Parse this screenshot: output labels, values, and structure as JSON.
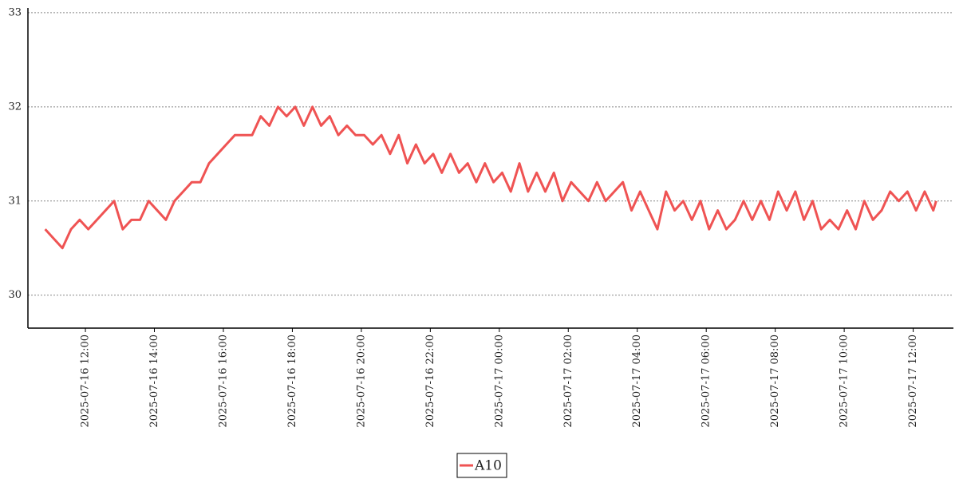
{
  "chart_data": {
    "type": "line",
    "x": [
      "2025-07-16 10:50",
      "2025-07-16 11:05",
      "2025-07-16 11:20",
      "2025-07-16 11:35",
      "2025-07-16 11:50",
      "2025-07-16 12:05",
      "2025-07-16 12:20",
      "2025-07-16 12:35",
      "2025-07-16 12:50",
      "2025-07-16 13:05",
      "2025-07-16 13:20",
      "2025-07-16 13:35",
      "2025-07-16 13:50",
      "2025-07-16 14:05",
      "2025-07-16 14:20",
      "2025-07-16 14:35",
      "2025-07-16 14:50",
      "2025-07-16 15:05",
      "2025-07-16 15:20",
      "2025-07-16 15:35",
      "2025-07-16 15:50",
      "2025-07-16 16:05",
      "2025-07-16 16:20",
      "2025-07-16 16:35",
      "2025-07-16 16:50",
      "2025-07-16 17:05",
      "2025-07-16 17:20",
      "2025-07-16 17:35",
      "2025-07-16 17:50",
      "2025-07-16 18:05",
      "2025-07-16 18:20",
      "2025-07-16 18:35",
      "2025-07-16 18:50",
      "2025-07-16 19:05",
      "2025-07-16 19:20",
      "2025-07-16 19:35",
      "2025-07-16 19:50",
      "2025-07-16 20:05",
      "2025-07-16 20:20",
      "2025-07-16 20:35",
      "2025-07-16 20:50",
      "2025-07-16 21:05",
      "2025-07-16 21:20",
      "2025-07-16 21:35",
      "2025-07-16 21:50",
      "2025-07-16 22:05",
      "2025-07-16 22:20",
      "2025-07-16 22:35",
      "2025-07-16 22:50",
      "2025-07-16 23:05",
      "2025-07-16 23:20",
      "2025-07-16 23:35",
      "2025-07-16 23:50",
      "2025-07-17 00:05",
      "2025-07-17 00:20",
      "2025-07-17 00:35",
      "2025-07-17 00:50",
      "2025-07-17 01:05",
      "2025-07-17 01:20",
      "2025-07-17 01:35",
      "2025-07-17 01:50",
      "2025-07-17 02:05",
      "2025-07-17 02:20",
      "2025-07-17 02:35",
      "2025-07-17 02:50",
      "2025-07-17 03:05",
      "2025-07-17 03:20",
      "2025-07-17 03:35",
      "2025-07-17 03:50",
      "2025-07-17 04:05",
      "2025-07-17 04:20",
      "2025-07-17 04:35",
      "2025-07-17 04:50",
      "2025-07-17 05:05",
      "2025-07-17 05:20",
      "2025-07-17 05:35",
      "2025-07-17 05:50",
      "2025-07-17 06:05",
      "2025-07-17 06:20",
      "2025-07-17 06:35",
      "2025-07-17 06:50",
      "2025-07-17 07:05",
      "2025-07-17 07:20",
      "2025-07-17 07:35",
      "2025-07-17 07:50",
      "2025-07-17 08:05",
      "2025-07-17 08:20",
      "2025-07-17 08:35",
      "2025-07-17 08:50",
      "2025-07-17 09:05",
      "2025-07-17 09:20",
      "2025-07-17 09:35",
      "2025-07-17 09:50",
      "2025-07-17 10:05",
      "2025-07-17 10:20",
      "2025-07-17 10:35",
      "2025-07-17 10:50",
      "2025-07-17 11:05",
      "2025-07-17 11:20",
      "2025-07-17 11:35",
      "2025-07-17 11:50",
      "2025-07-17 12:05",
      "2025-07-17 12:20",
      "2025-07-17 12:35",
      "2025-07-17 12:40"
    ],
    "series": [
      {
        "name": "A10",
        "color": "#ef5353",
        "values": [
          30.7,
          30.6,
          30.5,
          30.7,
          30.8,
          30.7,
          30.8,
          30.9,
          31.0,
          30.7,
          30.8,
          30.8,
          31.0,
          30.9,
          30.8,
          31.0,
          31.1,
          31.2,
          31.2,
          31.4,
          31.5,
          31.6,
          31.7,
          31.7,
          31.7,
          31.9,
          31.8,
          32.0,
          31.9,
          32.0,
          31.8,
          32.0,
          31.8,
          31.9,
          31.7,
          31.8,
          31.7,
          31.7,
          31.6,
          31.7,
          31.5,
          31.7,
          31.4,
          31.6,
          31.4,
          31.5,
          31.3,
          31.5,
          31.3,
          31.4,
          31.2,
          31.4,
          31.2,
          31.3,
          31.1,
          31.4,
          31.1,
          31.3,
          31.1,
          31.3,
          31.0,
          31.2,
          31.1,
          31.0,
          31.2,
          31.0,
          31.1,
          31.2,
          30.9,
          31.1,
          30.9,
          30.7,
          31.1,
          30.9,
          31.0,
          30.8,
          31.0,
          30.7,
          30.9,
          30.7,
          30.8,
          31.0,
          30.8,
          31.0,
          30.8,
          31.1,
          30.9,
          31.1,
          30.8,
          31.0,
          30.7,
          30.8,
          30.7,
          30.9,
          30.7,
          31.0,
          30.8,
          30.9,
          31.1,
          31.0,
          31.1,
          30.9,
          31.1,
          30.9,
          31.0
        ]
      }
    ],
    "xlim": [
      "2025-07-16 10:20",
      "2025-07-17 13:10"
    ],
    "xticks": [
      "2025-07-16 12:00",
      "2025-07-16 14:00",
      "2025-07-16 16:00",
      "2025-07-16 18:00",
      "2025-07-16 20:00",
      "2025-07-16 22:00",
      "2025-07-17 00:00",
      "2025-07-17 02:00",
      "2025-07-17 04:00",
      "2025-07-17 06:00",
      "2025-07-17 08:00",
      "2025-07-17 10:00",
      "2025-07-17 12:00"
    ],
    "ylim": [
      29.65,
      33.05
    ],
    "yticks": [
      30,
      31,
      32,
      33
    ],
    "grid": true
  }
}
